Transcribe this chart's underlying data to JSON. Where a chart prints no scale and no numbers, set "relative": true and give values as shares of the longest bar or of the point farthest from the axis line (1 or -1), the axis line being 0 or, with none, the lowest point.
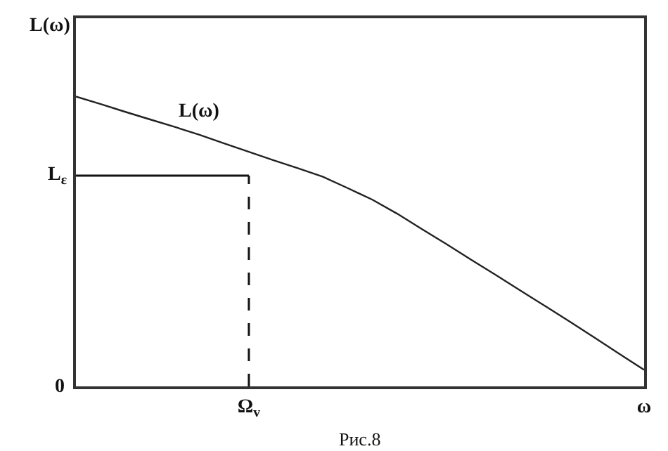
{
  "chart_data": {
    "type": "line",
    "relative": true,
    "ylabel": "L(ω)",
    "categories": [
      null,
      null,
      null,
      null,
      null,
      null,
      null,
      "Ω$_{v}$",
      null,
      null,
      null,
      null,
      null,
      null,
      null,
      null,
      null,
      null,
      null,
      null,
      null,
      null,
      null,
      "ω"
    ],
    "series": [
      {
        "name": "L(ω)",
        "color": "#222222",
        "values": [
          1.0,
          0.974,
          0.947,
          0.921,
          0.895,
          0.868,
          0.838,
          0.809,
          0.78,
          0.752,
          0.723,
          0.684,
          0.644,
          0.596,
          0.543,
          0.491,
          0.437,
          0.384,
          0.33,
          0.277,
          0.223,
          0.168,
          0.112,
          0.057
        ]
      }
    ],
    "ref_lines": [
      {
        "axis": "y",
        "value": 0.727,
        "label": "L$_{ε}$",
        "line_style": "solid",
        "color": "#111111"
      },
      {
        "axis": "x",
        "value": "Ω$_{v}$",
        "line_style": "dashed",
        "color": "#111111"
      }
    ],
    "annotations": [
      "0",
      "Рис.8"
    ],
    "legend": false,
    "marker": "none",
    "line_style": "solid"
  }
}
